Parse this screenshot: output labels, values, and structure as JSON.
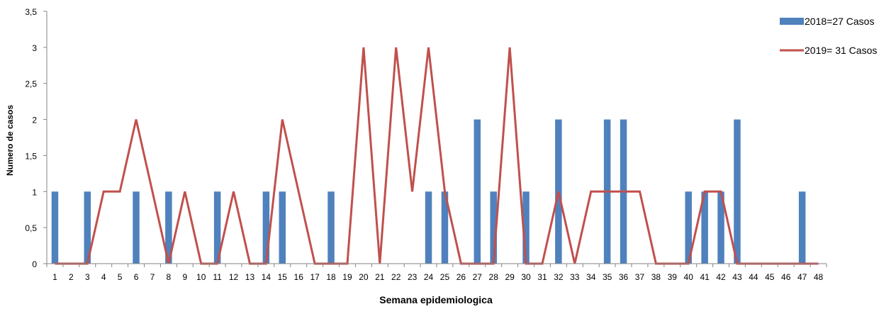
{
  "chart_data": {
    "type": "bar",
    "xlabel": "Semana epidemiologica",
    "ylabel": "Numero de casos",
    "ylim": [
      0,
      3.5
    ],
    "yticks": [
      "0",
      "0,5",
      "1",
      "1,5",
      "2",
      "2,5",
      "3",
      "3,5"
    ],
    "categories": [
      "1",
      "2",
      "3",
      "4",
      "5",
      "6",
      "7",
      "8",
      "9",
      "10",
      "11",
      "12",
      "13",
      "14",
      "15",
      "16",
      "17",
      "18",
      "19",
      "20",
      "21",
      "22",
      "23",
      "24",
      "25",
      "26",
      "27",
      "28",
      "29",
      "30",
      "31",
      "32",
      "33",
      "34",
      "35",
      "36",
      "37",
      "38",
      "39",
      "40",
      "41",
      "42",
      "43",
      "44",
      "45",
      "46",
      "47",
      "48"
    ],
    "legend_position": "top-right",
    "grid": false,
    "series": [
      {
        "name": "2018=27 Casos",
        "kind": "bar",
        "color": "#4f81bd",
        "values": [
          1,
          0,
          1,
          0,
          0,
          1,
          0,
          1,
          0,
          0,
          1,
          0,
          0,
          1,
          1,
          0,
          0,
          1,
          0,
          0,
          0,
          0,
          0,
          1,
          1,
          0,
          2,
          1,
          0,
          1,
          0,
          2,
          0,
          0,
          2,
          2,
          0,
          0,
          0,
          1,
          1,
          1,
          2,
          0,
          0,
          0,
          1,
          0
        ]
      },
      {
        "name": "2019= 31 Casos",
        "kind": "line",
        "color": "#c0504d",
        "values": [
          0,
          0,
          0,
          1,
          1,
          2,
          1,
          0,
          1,
          0,
          0,
          1,
          0,
          0,
          2,
          1,
          0,
          0,
          0,
          3,
          0,
          3,
          1,
          3,
          1,
          0,
          0,
          0,
          3,
          0,
          0,
          1,
          0,
          1,
          1,
          1,
          1,
          0,
          0,
          0,
          1,
          1,
          0,
          0,
          0,
          0,
          0,
          0
        ]
      }
    ]
  }
}
